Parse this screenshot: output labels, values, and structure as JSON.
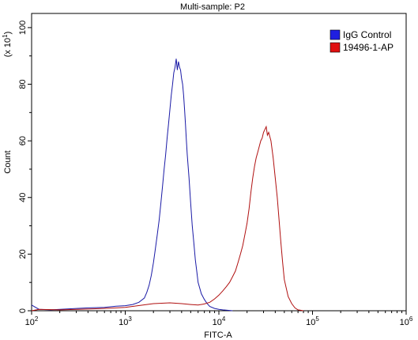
{
  "chart_data": {
    "type": "line",
    "title": "Multi-sample: P2",
    "xlabel": "FITC-A",
    "ylabel": "Count",
    "y_scale_note": "(x 10",
    "y_scale_exp": "1",
    "y_scale_close": ")",
    "x_scale": "log",
    "xlim": [
      100,
      1000000
    ],
    "ylim": [
      0,
      105
    ],
    "x_ticks": [
      {
        "base": "10",
        "exp": "2",
        "value": 100
      },
      {
        "base": "10",
        "exp": "3",
        "value": 1000
      },
      {
        "base": "10",
        "exp": "4",
        "value": 10000
      },
      {
        "base": "10",
        "exp": "5",
        "value": 100000
      },
      {
        "base": "10",
        "exp": "6",
        "value": 1000000
      }
    ],
    "y_ticks": [
      0,
      20,
      40,
      60,
      80,
      100
    ],
    "legend_position": "top-right",
    "series": [
      {
        "name": "IgG Control",
        "color": "#1a1aa6",
        "swatch": "#1f1fe0",
        "x": [
          100,
          120,
          160,
          200,
          300,
          400,
          600,
          800,
          1000,
          1200,
          1400,
          1600,
          1700,
          1800,
          1900,
          2000,
          2100,
          2200,
          2300,
          2400,
          2500,
          2600,
          2700,
          2800,
          2900,
          3000,
          3100,
          3200,
          3300,
          3400,
          3500,
          3600,
          3700,
          3800,
          3900,
          4000,
          4100,
          4200,
          4300,
          4400,
          4500,
          4600,
          4800,
          5000,
          5200,
          5400,
          5600,
          5800,
          6000,
          6500,
          7000,
          7500,
          8000,
          9000,
          10000,
          11000,
          12000,
          13000,
          14000
        ],
        "values": [
          2,
          0.5,
          0.3,
          0.5,
          0.8,
          1.0,
          1.2,
          1.6,
          1.8,
          2.2,
          3.0,
          4.5,
          6.5,
          9.0,
          12.5,
          17,
          22,
          27,
          32,
          38,
          44,
          50,
          55,
          61,
          66,
          71,
          76,
          80,
          84,
          86,
          89,
          85,
          88,
          86,
          85,
          82,
          80,
          76,
          71,
          66,
          60,
          55,
          47,
          38,
          30,
          24,
          18,
          14,
          10,
          6,
          4,
          2.5,
          1.5,
          0.8,
          0.5,
          0.3,
          0.2,
          0.1,
          0
        ]
      },
      {
        "name": "19496-1-AP",
        "color": "#b01010",
        "swatch": "#e01010",
        "x": [
          100,
          120,
          200,
          400,
          800,
          1000,
          2000,
          3000,
          4000,
          5000,
          6000,
          7000,
          8000,
          9000,
          10000,
          11000,
          12000,
          13000,
          14000,
          15000,
          16000,
          17000,
          18000,
          19000,
          20000,
          21000,
          22000,
          23000,
          24000,
          25000,
          26000,
          27000,
          28000,
          29000,
          30000,
          31000,
          32000,
          33000,
          34000,
          36000,
          38000,
          40000,
          42000,
          44000,
          46000,
          48000,
          50000,
          55000,
          60000,
          65000,
          70000,
          80000
        ],
        "values": [
          0,
          0.5,
          0.3,
          0.6,
          1.0,
          1.2,
          2.5,
          2.8,
          2.5,
          2.2,
          2.0,
          2.4,
          3.0,
          4.2,
          5.5,
          7.0,
          8.5,
          10,
          12,
          14,
          17,
          20,
          23,
          27,
          31,
          36,
          42,
          47,
          51,
          54,
          56,
          58,
          60,
          61,
          63,
          64,
          65,
          62,
          63,
          60,
          54,
          47,
          40,
          32,
          24,
          17,
          11,
          5,
          2.5,
          1,
          0.3,
          0
        ]
      }
    ]
  }
}
